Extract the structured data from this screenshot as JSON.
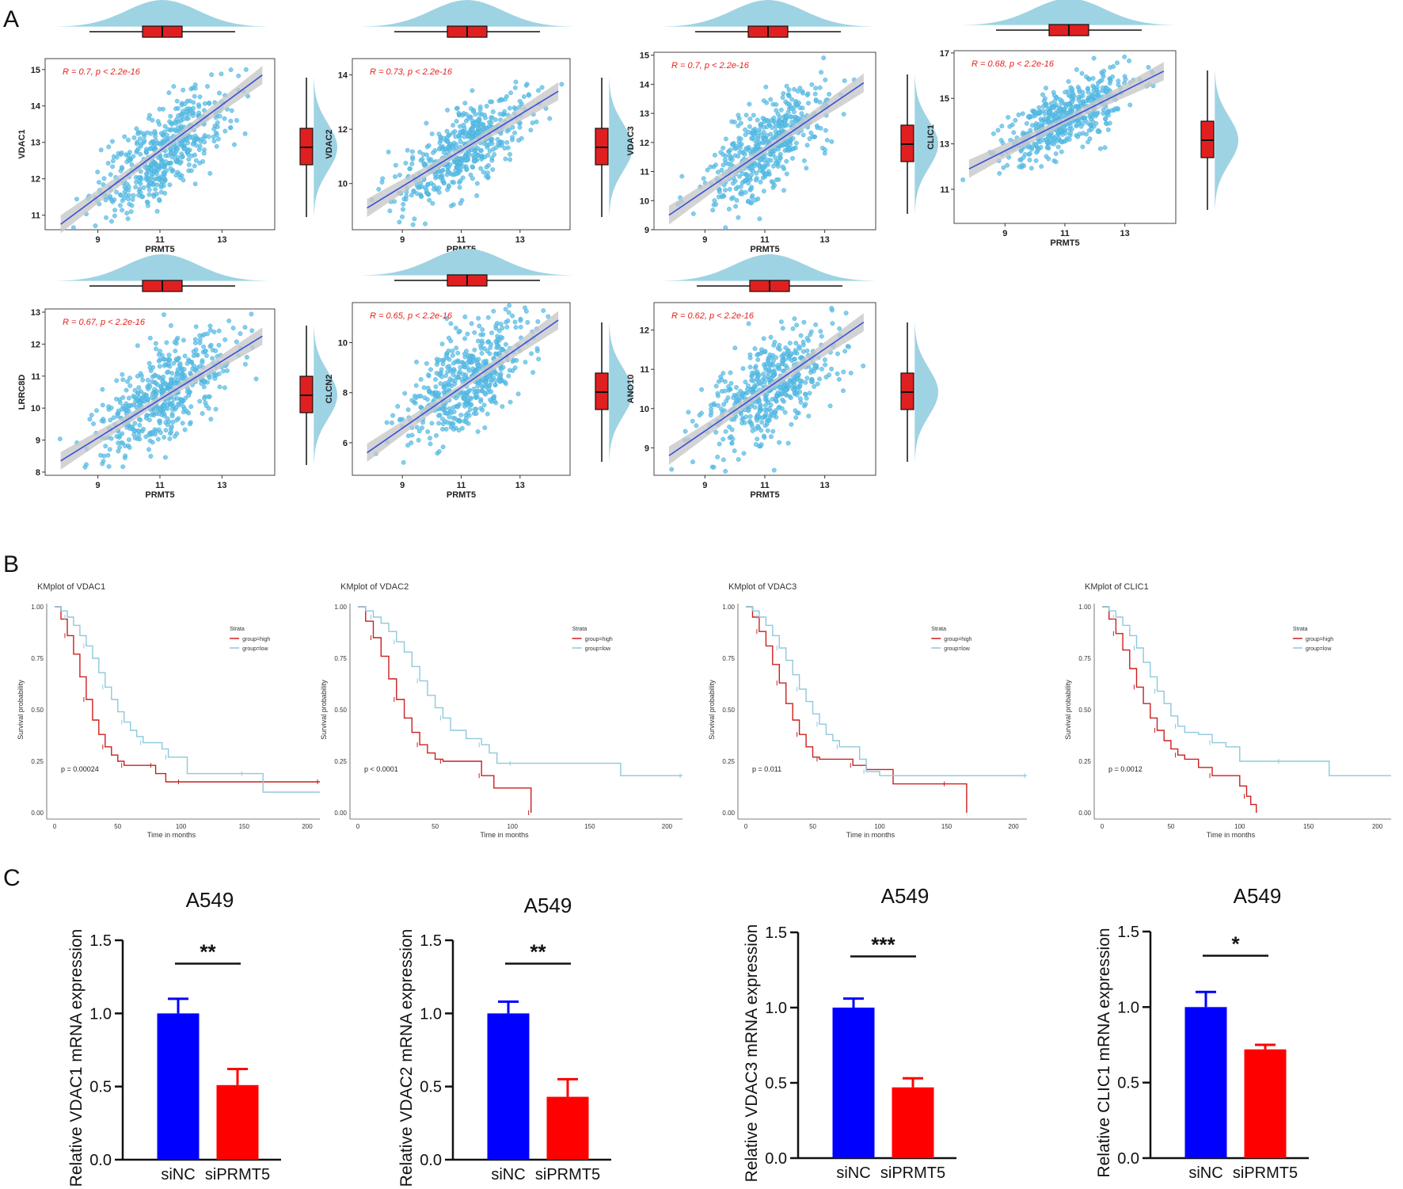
{
  "panel_labels": [
    "A",
    "B",
    "C"
  ],
  "colors": {
    "scatter_point": "#5bbde6",
    "regression_line": "#3a4fd8",
    "confidence_band": "#c8c8c8",
    "density_fill": "#9ed3e3",
    "box_fill": "#e02020",
    "annotation_red": "#e8201c",
    "km_high": "#cc1f1f",
    "km_low": "#8ec8dc",
    "bar_sinc": "#0000ff",
    "bar_siprmt5": "#ff0000"
  },
  "chart_data": [
    {
      "type": "scatter",
      "panel": "A",
      "id": "scatter-vdac1",
      "xlabel": "PRMT5",
      "ylabel": "VDAC1",
      "annotation": "R = 0.7, p < 2.2e-16",
      "xlim": [
        7.3,
        14.7
      ],
      "ylim": [
        10.6,
        15.3
      ],
      "xticks": [
        9,
        11,
        13
      ],
      "yticks": [
        11,
        12,
        13,
        14,
        15
      ],
      "fit": {
        "x": [
          7.8,
          14.3
        ],
        "y": [
          10.75,
          14.85
        ]
      },
      "x_mean": 11.1,
      "x_sd": 1.05,
      "y_mean": 12.75,
      "y_sd": 0.82,
      "r": 0.7,
      "n": 520
    },
    {
      "type": "scatter",
      "panel": "A",
      "id": "scatter-vdac2",
      "xlabel": "PRMT5",
      "ylabel": "VDAC2",
      "annotation": "R = 0.73, p < 2.2e-16",
      "xlim": [
        7.3,
        14.7
      ],
      "ylim": [
        8.3,
        14.6
      ],
      "xticks": [
        9,
        11,
        13
      ],
      "yticks": [
        10,
        12,
        14
      ],
      "fit": {
        "x": [
          7.8,
          14.3
        ],
        "y": [
          9.1,
          13.4
        ]
      },
      "x_mean": 11.1,
      "x_sd": 1.05,
      "y_mean": 11.3,
      "y_sd": 1.0,
      "r": 0.73,
      "n": 520
    },
    {
      "type": "scatter",
      "panel": "A",
      "id": "scatter-vdac3",
      "xlabel": "PRMT5",
      "ylabel": "VDAC3",
      "annotation": "R = 0.7, p < 2.2e-16",
      "xlim": [
        7.3,
        14.7
      ],
      "ylim": [
        9.0,
        15.1
      ],
      "xticks": [
        9,
        11,
        13
      ],
      "yticks": [
        9,
        10,
        11,
        12,
        13,
        14,
        15
      ],
      "fit": {
        "x": [
          7.8,
          14.3
        ],
        "y": [
          9.5,
          14.05
        ]
      },
      "x_mean": 11.1,
      "x_sd": 1.05,
      "y_mean": 11.9,
      "y_sd": 1.05,
      "r": 0.7,
      "n": 520
    },
    {
      "type": "scatter",
      "panel": "A",
      "id": "scatter-clic1",
      "xlabel": "PRMT5",
      "ylabel": "CLIC1",
      "annotation": "R = 0.68, p < 2.2e-16",
      "xlim": [
        7.3,
        14.7
      ],
      "ylim": [
        9.5,
        17.1
      ],
      "xticks": [
        9,
        11,
        13
      ],
      "yticks": [
        11,
        13,
        15,
        17
      ],
      "fit": {
        "x": [
          7.8,
          14.3
        ],
        "y": [
          11.9,
          16.2
        ]
      },
      "x_mean": 11.1,
      "x_sd": 1.05,
      "y_mean": 14.2,
      "y_sd": 0.95,
      "r": 0.68,
      "n": 520
    },
    {
      "type": "scatter",
      "panel": "A",
      "id": "scatter-lrrc8d",
      "xlabel": "PRMT5",
      "ylabel": "LRRC8D",
      "annotation": "R = 0.67, p < 2.2e-16",
      "xlim": [
        7.3,
        14.7
      ],
      "ylim": [
        7.9,
        13.1
      ],
      "xticks": [
        9,
        11,
        13
      ],
      "yticks": [
        8,
        9,
        10,
        11,
        12,
        13
      ],
      "fit": {
        "x": [
          7.8,
          14.3
        ],
        "y": [
          8.35,
          12.25
        ]
      },
      "x_mean": 11.1,
      "x_sd": 1.05,
      "y_mean": 10.4,
      "y_sd": 0.95,
      "r": 0.67,
      "n": 520
    },
    {
      "type": "scatter",
      "panel": "A",
      "id": "scatter-clcn2",
      "xlabel": "PRMT5",
      "ylabel": "CLCN2",
      "annotation": "R = 0.65, p < 2.2e-16",
      "xlim": [
        7.3,
        14.7
      ],
      "ylim": [
        4.7,
        11.6
      ],
      "xticks": [
        9,
        11,
        13
      ],
      "yticks": [
        6,
        8,
        10
      ],
      "fit": {
        "x": [
          7.8,
          14.3
        ],
        "y": [
          5.6,
          10.9
        ]
      },
      "x_mean": 11.1,
      "x_sd": 1.05,
      "y_mean": 8.4,
      "y_sd": 1.2,
      "r": 0.65,
      "n": 520
    },
    {
      "type": "scatter",
      "panel": "A",
      "id": "scatter-ano10",
      "xlabel": "PRMT5",
      "ylabel": "ANO10",
      "annotation": "R = 0.62, p < 2.2e-16",
      "xlim": [
        7.3,
        14.7
      ],
      "ylim": [
        8.3,
        12.7
      ],
      "xticks": [
        9,
        11,
        13
      ],
      "yticks": [
        9,
        10,
        11,
        12
      ],
      "fit": {
        "x": [
          7.8,
          14.3
        ],
        "y": [
          8.8,
          12.2
        ]
      },
      "x_mean": 11.1,
      "x_sd": 1.05,
      "y_mean": 10.45,
      "y_sd": 0.75,
      "r": 0.62,
      "n": 520
    },
    {
      "type": "line",
      "subtype": "kaplan-meier",
      "panel": "B",
      "id": "km-vdac1",
      "title": "KMplot of VDAC1",
      "xlabel": "Time in months",
      "ylabel": "Survival probability",
      "xlim": [
        0,
        210
      ],
      "ylim": [
        0,
        1
      ],
      "xticks": [
        0,
        50,
        100,
        150,
        200
      ],
      "yticks": [
        0.0,
        0.25,
        0.5,
        0.75,
        1.0
      ],
      "ytick_labels": [
        "0.00",
        "0.25",
        "0.50",
        "0.75",
        "1.00"
      ],
      "legend_title": "Strata",
      "pvalue": "p = 0.00024",
      "series": [
        {
          "name": "group=high",
          "x": [
            0,
            5,
            10,
            15,
            20,
            25,
            30,
            35,
            40,
            45,
            50,
            55,
            60,
            70,
            78,
            80,
            88,
            100,
            130,
            165,
            210
          ],
          "y": [
            1.0,
            0.94,
            0.86,
            0.77,
            0.66,
            0.55,
            0.45,
            0.38,
            0.32,
            0.28,
            0.25,
            0.23,
            0.23,
            0.23,
            0.23,
            0.19,
            0.15,
            0.15,
            0.15,
            0.15,
            0.15
          ]
        },
        {
          "name": "group=low",
          "x": [
            0,
            5,
            10,
            15,
            20,
            25,
            30,
            35,
            40,
            45,
            50,
            55,
            60,
            65,
            70,
            80,
            85,
            90,
            100,
            105,
            150,
            165,
            210
          ],
          "y": [
            1.0,
            0.98,
            0.95,
            0.91,
            0.86,
            0.81,
            0.75,
            0.68,
            0.61,
            0.55,
            0.49,
            0.44,
            0.4,
            0.37,
            0.34,
            0.34,
            0.31,
            0.27,
            0.27,
            0.19,
            0.19,
            0.1,
            0.1
          ]
        }
      ]
    },
    {
      "type": "line",
      "subtype": "kaplan-meier",
      "panel": "B",
      "id": "km-vdac2",
      "title": "KMplot of VDAC2",
      "xlabel": "Time in months",
      "ylabel": "Survival probability",
      "xlim": [
        0,
        210
      ],
      "ylim": [
        0,
        1
      ],
      "xticks": [
        0,
        50,
        100,
        150,
        200
      ],
      "yticks": [
        0.0,
        0.25,
        0.5,
        0.75,
        1.0
      ],
      "ytick_labels": [
        "0.00",
        "0.25",
        "0.50",
        "0.75",
        "1.00"
      ],
      "legend_title": "Strata",
      "pvalue": "p < 0.0001",
      "series": [
        {
          "name": "group=high",
          "x": [
            0,
            5,
            10,
            15,
            20,
            25,
            30,
            35,
            40,
            45,
            50,
            55,
            60,
            70,
            80,
            88,
            100,
            112
          ],
          "y": [
            1.0,
            0.93,
            0.85,
            0.76,
            0.65,
            0.55,
            0.46,
            0.39,
            0.33,
            0.29,
            0.26,
            0.25,
            0.25,
            0.25,
            0.18,
            0.12,
            0.12,
            0.0
          ]
        },
        {
          "name": "group=low",
          "x": [
            0,
            5,
            10,
            15,
            20,
            25,
            30,
            35,
            40,
            45,
            50,
            55,
            60,
            70,
            80,
            85,
            90,
            100,
            165,
            170,
            210
          ],
          "y": [
            1.0,
            0.98,
            0.95,
            0.92,
            0.88,
            0.83,
            0.78,
            0.71,
            0.64,
            0.57,
            0.51,
            0.46,
            0.4,
            0.36,
            0.33,
            0.29,
            0.24,
            0.24,
            0.24,
            0.18,
            0.18
          ]
        }
      ]
    },
    {
      "type": "line",
      "subtype": "kaplan-meier",
      "panel": "B",
      "id": "km-vdac3",
      "title": "KMplot of VDAC3",
      "xlabel": "Time in months",
      "ylabel": "Survival probability",
      "xlim": [
        0,
        210
      ],
      "ylim": [
        0,
        1
      ],
      "xticks": [
        0,
        50,
        100,
        150,
        200
      ],
      "yticks": [
        0.0,
        0.25,
        0.5,
        0.75,
        1.0
      ],
      "ytick_labels": [
        "0.00",
        "0.25",
        "0.50",
        "0.75",
        "1.00"
      ],
      "legend_title": "Strata",
      "pvalue": "p = 0.011",
      "series": [
        {
          "name": "group=high",
          "x": [
            0,
            5,
            10,
            15,
            20,
            25,
            30,
            35,
            40,
            45,
            50,
            55,
            65,
            75,
            80,
            90,
            110,
            150,
            165
          ],
          "y": [
            1.0,
            0.95,
            0.88,
            0.81,
            0.72,
            0.63,
            0.53,
            0.45,
            0.38,
            0.32,
            0.27,
            0.26,
            0.26,
            0.26,
            0.23,
            0.21,
            0.14,
            0.14,
            0.0
          ]
        },
        {
          "name": "group=low",
          "x": [
            0,
            5,
            10,
            15,
            20,
            25,
            30,
            35,
            40,
            45,
            50,
            55,
            60,
            65,
            70,
            80,
            85,
            90,
            100,
            165,
            210
          ],
          "y": [
            1.0,
            0.98,
            0.95,
            0.91,
            0.86,
            0.8,
            0.74,
            0.67,
            0.6,
            0.54,
            0.48,
            0.43,
            0.38,
            0.35,
            0.32,
            0.32,
            0.26,
            0.2,
            0.18,
            0.18,
            0.18
          ]
        }
      ]
    },
    {
      "type": "line",
      "subtype": "kaplan-meier",
      "panel": "B",
      "id": "km-clic1",
      "title": "KMplot of CLIC1",
      "xlabel": "Time in months",
      "ylabel": "Survival probability",
      "xlim": [
        0,
        210
      ],
      "ylim": [
        0,
        1
      ],
      "xticks": [
        0,
        50,
        100,
        150,
        200
      ],
      "yticks": [
        0.0,
        0.25,
        0.5,
        0.75,
        1.0
      ],
      "ytick_labels": [
        "0.00",
        "0.25",
        "0.50",
        "0.75",
        "1.00"
      ],
      "legend_title": "Strata",
      "pvalue": "p = 0.0012",
      "series": [
        {
          "name": "group=high",
          "x": [
            0,
            5,
            10,
            15,
            20,
            25,
            30,
            35,
            40,
            45,
            50,
            55,
            60,
            70,
            80,
            95,
            100,
            105,
            108,
            112
          ],
          "y": [
            1.0,
            0.94,
            0.87,
            0.79,
            0.7,
            0.61,
            0.53,
            0.46,
            0.4,
            0.35,
            0.31,
            0.28,
            0.26,
            0.22,
            0.18,
            0.18,
            0.13,
            0.08,
            0.04,
            0.0
          ]
        },
        {
          "name": "group=low",
          "x": [
            0,
            5,
            10,
            15,
            20,
            25,
            30,
            35,
            40,
            45,
            50,
            55,
            60,
            70,
            80,
            90,
            100,
            130,
            165,
            210
          ],
          "y": [
            1.0,
            0.98,
            0.95,
            0.91,
            0.86,
            0.8,
            0.73,
            0.66,
            0.59,
            0.53,
            0.47,
            0.42,
            0.39,
            0.38,
            0.34,
            0.32,
            0.25,
            0.25,
            0.18,
            0.18
          ]
        }
      ]
    },
    {
      "type": "bar",
      "panel": "C",
      "id": "bar-vdac1",
      "title": "A549",
      "ylabel": "Relative VDAC1 mRNA expression",
      "categories": [
        "siNC",
        "siPRMT5"
      ],
      "values": [
        1.0,
        0.51
      ],
      "errors": [
        0.1,
        0.11
      ],
      "ylim": [
        0,
        1.5
      ],
      "yticks": [
        0.0,
        0.5,
        1.0,
        1.5
      ],
      "ytick_labels": [
        "0.0",
        "0.5",
        "1.0",
        "1.5"
      ],
      "significance": "**"
    },
    {
      "type": "bar",
      "panel": "C",
      "id": "bar-vdac2",
      "title": "A549",
      "ylabel": "Relative VDAC2 mRNA expression",
      "categories": [
        "siNC",
        "siPRMT5"
      ],
      "values": [
        1.0,
        0.43
      ],
      "errors": [
        0.08,
        0.12
      ],
      "ylim": [
        0,
        1.5
      ],
      "yticks": [
        0.0,
        0.5,
        1.0,
        1.5
      ],
      "ytick_labels": [
        "0.0",
        "0.5",
        "1.0",
        "1.5"
      ],
      "significance": "**"
    },
    {
      "type": "bar",
      "panel": "C",
      "id": "bar-vdac3",
      "title": "A549",
      "ylabel": "Relative VDAC3 mRNA expression",
      "categories": [
        "siNC",
        "siPRMT5"
      ],
      "values": [
        1.0,
        0.47
      ],
      "errors": [
        0.06,
        0.06
      ],
      "ylim": [
        0,
        1.5
      ],
      "yticks": [
        0.0,
        0.5,
        1.0,
        1.5
      ],
      "ytick_labels": [
        "0.0",
        "0.5",
        "1.0",
        "1.5"
      ],
      "significance": "***"
    },
    {
      "type": "bar",
      "panel": "C",
      "id": "bar-clic1",
      "title": "A549",
      "ylabel": "Relative CLIC1 mRNA expression",
      "categories": [
        "siNC",
        "siPRMT5"
      ],
      "values": [
        1.0,
        0.72
      ],
      "errors": [
        0.1,
        0.03
      ],
      "ylim": [
        0,
        1.5
      ],
      "yticks": [
        0.0,
        0.5,
        1.0,
        1.5
      ],
      "ytick_labels": [
        "0.0",
        "0.5",
        "1.0",
        "1.5"
      ],
      "significance": "*"
    }
  ]
}
